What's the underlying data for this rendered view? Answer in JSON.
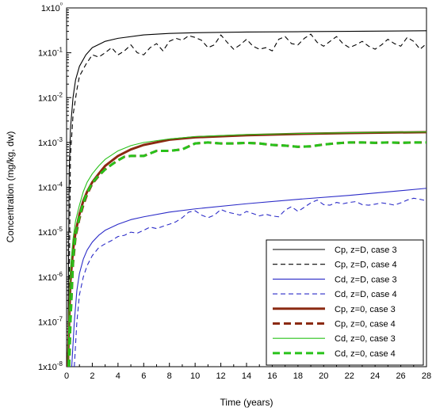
{
  "chart_data": {
    "type": "line",
    "title": "",
    "xlabel": "Time (years)",
    "ylabel": "Concentration (mg/kg, dw)",
    "xlim": [
      0,
      28
    ],
    "ylim": [
      1e-08,
      1
    ],
    "yscale": "log",
    "xticks": [
      0,
      2,
      4,
      6,
      8,
      10,
      12,
      14,
      16,
      18,
      20,
      22,
      24,
      26,
      28
    ],
    "yticks": [
      {
        "value": 1e-08,
        "label": "1x10-8"
      },
      {
        "value": 1e-07,
        "label": "1x10-7"
      },
      {
        "value": 1e-06,
        "label": "1x10-6"
      },
      {
        "value": 1e-05,
        "label": "1x10-5"
      },
      {
        "value": 0.0001,
        "label": "1x10-4"
      },
      {
        "value": 0.001,
        "label": "1x10-3"
      },
      {
        "value": 0.01,
        "label": "1x10-2"
      },
      {
        "value": 0.1,
        "label": "1x10-1"
      },
      {
        "value": 1,
        "label": "1x10⁰"
      }
    ],
    "legend_position": "bottom-right",
    "series": [
      {
        "name": "Cp, z=D, case 3",
        "color": "#000000",
        "style": "solid-thin",
        "x": [
          0.1,
          0.2,
          0.3,
          0.5,
          0.7,
          1,
          1.5,
          2,
          3,
          4,
          6,
          8,
          10,
          14,
          18,
          22,
          28
        ],
        "y": [
          1e-08,
          0.0002,
          0.002,
          0.01,
          0.025,
          0.05,
          0.09,
          0.13,
          0.18,
          0.21,
          0.25,
          0.27,
          0.28,
          0.29,
          0.295,
          0.3,
          0.31
        ]
      },
      {
        "name": "Cp, z=D, case 4",
        "color": "#000000",
        "style": "dash-thin",
        "x": [
          0.15,
          0.3,
          0.5,
          0.8,
          1,
          1.5,
          2,
          2.5,
          3,
          3.5,
          4,
          4.5,
          5,
          5.5,
          6,
          6.5,
          7,
          7.5,
          8,
          8.5,
          9,
          9.5,
          10,
          10.5,
          11,
          11.5,
          12,
          12.5,
          13,
          13.5,
          14,
          14.5,
          15,
          15.5,
          16,
          16.5,
          17,
          17.5,
          18,
          18.5,
          19,
          19.5,
          20,
          20.5,
          21,
          21.5,
          22,
          22.5,
          23,
          23.5,
          24,
          24.5,
          25,
          25.5,
          26,
          26.5,
          27,
          27.5,
          28
        ],
        "y": [
          1e-08,
          0.0005,
          0.004,
          0.015,
          0.03,
          0.055,
          0.09,
          0.08,
          0.1,
          0.13,
          0.09,
          0.11,
          0.15,
          0.1,
          0.09,
          0.13,
          0.16,
          0.11,
          0.18,
          0.21,
          0.19,
          0.24,
          0.22,
          0.19,
          0.13,
          0.15,
          0.25,
          0.17,
          0.12,
          0.15,
          0.2,
          0.14,
          0.12,
          0.13,
          0.11,
          0.2,
          0.23,
          0.16,
          0.15,
          0.21,
          0.26,
          0.17,
          0.14,
          0.18,
          0.23,
          0.16,
          0.13,
          0.15,
          0.18,
          0.14,
          0.12,
          0.15,
          0.2,
          0.16,
          0.14,
          0.22,
          0.18,
          0.12,
          0.16
        ]
      },
      {
        "name": "Cd, z=D, case 3",
        "color": "#2b2bc8",
        "style": "solid-thin",
        "x": [
          0.4,
          0.6,
          0.8,
          1,
          1.3,
          1.6,
          2,
          2.5,
          3,
          4,
          5,
          6,
          8,
          10,
          14,
          18,
          22,
          28
        ],
        "y": [
          1e-08,
          1e-07,
          5e-07,
          1.2e-06,
          2.5e-06,
          4e-06,
          6e-06,
          8.5e-06,
          1.1e-05,
          1.5e-05,
          1.9e-05,
          2.2e-05,
          2.8e-05,
          3.3e-05,
          4.3e-05,
          5.4e-05,
          6.6e-05,
          9.5e-05
        ]
      },
      {
        "name": "Cd, z=D, case 4",
        "color": "#2b2bc8",
        "style": "dash-thin",
        "x": [
          0.6,
          0.8,
          1,
          1.3,
          1.6,
          2,
          2.5,
          3,
          3.5,
          4,
          4.5,
          5,
          5.5,
          6,
          6.5,
          7,
          7.5,
          8,
          8.5,
          9,
          9.5,
          10,
          10.5,
          11,
          11.5,
          12,
          12.5,
          13,
          13.5,
          14,
          14.5,
          15,
          15.5,
          16,
          16.5,
          17,
          17.5,
          18,
          18.5,
          19,
          19.5,
          20,
          20.5,
          21,
          21.5,
          22,
          22.5,
          23,
          23.5,
          24,
          24.5,
          25,
          25.5,
          26,
          26.5,
          27,
          27.5,
          28
        ],
        "y": [
          1e-08,
          1e-07,
          4e-07,
          1e-06,
          1.8e-06,
          3e-06,
          4.5e-06,
          5.5e-06,
          6.5e-06,
          8e-06,
          8.5e-06,
          1e-05,
          9.5e-06,
          1.1e-05,
          1.3e-05,
          1.2e-05,
          1.35e-05,
          1.5e-05,
          1.7e-05,
          2.1e-05,
          2.8e-05,
          3e-05,
          2.4e-05,
          2.1e-05,
          2.4e-05,
          3.2e-05,
          2.8e-05,
          2.6e-05,
          2.4e-05,
          2.9e-05,
          2.6e-05,
          2.3e-05,
          2.5e-05,
          2.3e-05,
          2.2e-05,
          3.1e-05,
          3.7e-05,
          2.9e-05,
          3.6e-05,
          4.5e-05,
          5.2e-05,
          4.1e-05,
          4e-05,
          4.6e-05,
          4.3e-05,
          4.6e-05,
          4.8e-05,
          4.1e-05,
          4e-05,
          4.2e-05,
          4.5e-05,
          4.3e-05,
          4e-05,
          4.5e-05,
          5.2e-05,
          5.7e-05,
          5.4e-05,
          5e-05
        ]
      },
      {
        "name": "Cp, z=0, case 3",
        "color": "#8b2a12",
        "style": "solid-thick",
        "x": [
          0.1,
          0.2,
          0.3,
          0.5,
          0.7,
          1,
          1.3,
          1.6,
          2,
          2.5,
          3,
          4,
          5,
          6,
          8,
          10,
          14,
          18,
          22,
          28
        ],
        "y": [
          1e-08,
          1e-07,
          8e-07,
          4e-06,
          1e-05,
          2.5e-05,
          5e-05,
          8e-05,
          0.00013,
          0.0002,
          0.0003,
          0.0005,
          0.0007,
          0.00088,
          0.00115,
          0.0013,
          0.00145,
          0.00155,
          0.00162,
          0.0017
        ]
      },
      {
        "name": "Cp, z=0, case 4",
        "color": "#8b2a12",
        "style": "dash-thick",
        "x": [
          0.2,
          0.3,
          0.5,
          0.7,
          1,
          1.3,
          1.6,
          2,
          2.5,
          3,
          3.5,
          4,
          4.5,
          5,
          6,
          7,
          8,
          9,
          10,
          11,
          12,
          13,
          14,
          15,
          16,
          17,
          18,
          19,
          20,
          21,
          22,
          23,
          24,
          25,
          26,
          27,
          28
        ],
        "y": [
          1e-08,
          1e-07,
          2e-06,
          8e-06,
          2e-05,
          4e-05,
          7e-05,
          0.00012,
          0.00018,
          0.00025,
          0.00032,
          0.0004,
          0.00048,
          0.0005,
          0.0005,
          0.00065,
          0.00065,
          0.0007,
          0.00095,
          0.001,
          0.00095,
          0.00095,
          0.00098,
          0.00095,
          0.00088,
          0.00085,
          0.0008,
          0.00082,
          0.0009,
          0.00096,
          0.001,
          0.001,
          0.00098,
          0.001,
          0.00098,
          0.001,
          0.001
        ]
      },
      {
        "name": "Cd, z=0, case 3",
        "color": "#28c21a",
        "style": "solid-thin",
        "x": [
          0.1,
          0.2,
          0.3,
          0.5,
          0.7,
          1,
          1.3,
          1.6,
          2,
          2.5,
          3,
          4,
          5,
          6,
          8,
          10,
          14,
          18,
          22,
          28
        ],
        "y": [
          1e-08,
          2e-07,
          1.5e-06,
          7e-06,
          1.8e-05,
          4e-05,
          8e-05,
          0.00013,
          0.0002,
          0.0003,
          0.00042,
          0.00065,
          0.00085,
          0.001,
          0.0012,
          0.00135,
          0.0015,
          0.00158,
          0.00165,
          0.00172
        ]
      },
      {
        "name": "Cd, z=0, case 4",
        "color": "#28c21a",
        "style": "dash-thick",
        "x": [
          0.2,
          0.3,
          0.5,
          0.7,
          1,
          1.3,
          1.6,
          2,
          2.5,
          3,
          3.5,
          4,
          4.5,
          5,
          6,
          7,
          8,
          9,
          10,
          11,
          12,
          13,
          14,
          15,
          16,
          17,
          18,
          19,
          20,
          21,
          22,
          23,
          24,
          25,
          26,
          27,
          28
        ],
        "y": [
          1e-08,
          1e-07,
          2.5e-06,
          9e-06,
          2.2e-05,
          4.5e-05,
          7.5e-05,
          0.000125,
          0.000185,
          0.00025,
          0.00032,
          0.0004,
          0.00048,
          0.0005,
          0.0005,
          0.00065,
          0.00065,
          0.0007,
          0.00095,
          0.001,
          0.00095,
          0.00095,
          0.00098,
          0.00095,
          0.00088,
          0.00085,
          0.0008,
          0.00082,
          0.0009,
          0.00096,
          0.001,
          0.001,
          0.00098,
          0.001,
          0.00098,
          0.001,
          0.001
        ]
      }
    ]
  }
}
